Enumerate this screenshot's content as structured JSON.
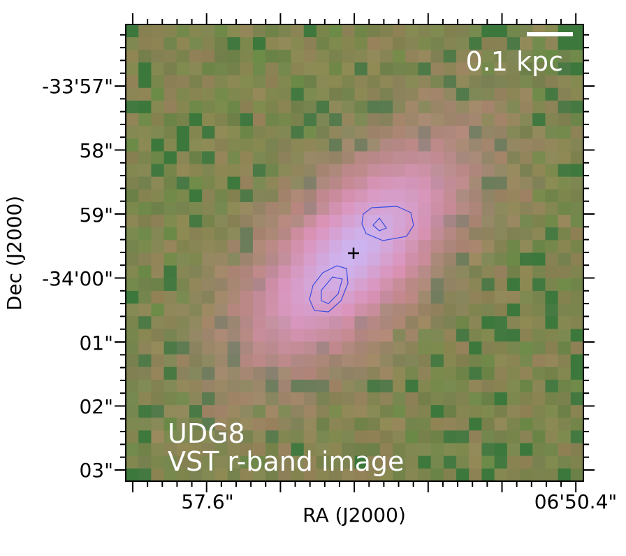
{
  "image": {
    "scale_bar": "0.1 kpc",
    "object": "UDG8",
    "band": "VST  r-band image"
  },
  "axes": {
    "x_label": "RA (J2000)",
    "y_label": "Dec (J2000)",
    "x_tick_labels": [
      "57.6\"",
      "06'50.4\""
    ],
    "y_tick_labels": [
      "-33'57\"",
      "58\"",
      "59\"",
      "-34'00\"",
      "01\"",
      "02\"",
      "03\""
    ]
  }
}
